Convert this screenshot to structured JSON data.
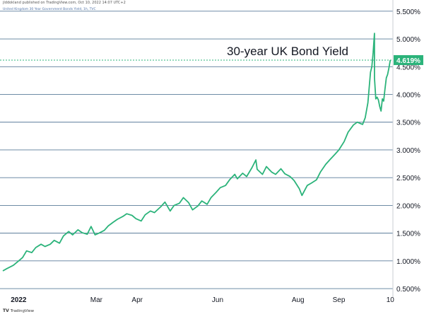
{
  "header": {
    "published": "jlddokland published on TradingView.com, Oct 10, 2022 14:07 UTC+2",
    "symbol": "United Kingdom 30 Year Government Bonds Yield, 1h, TVC"
  },
  "footer": {
    "logo_mark": "TV",
    "logo_text": "TradingView"
  },
  "colors": {
    "line": "#2bb37a",
    "grid": "#5a7c9a",
    "last_value_bg": "#2bb37a",
    "dotted_line": "#2bb37a",
    "axis_text": "#131722"
  },
  "chart_data": {
    "type": "line",
    "title": "30-year UK Bond Yield",
    "xlabel": "",
    "ylabel": "",
    "ylim": [
      0.45,
      5.6
    ],
    "grid": true,
    "last_value_label": "4.619%",
    "last_value": 4.619,
    "y_ticks": [
      {
        "value": 0.5,
        "label": "0.500%"
      },
      {
        "value": 1.0,
        "label": "1.000%"
      },
      {
        "value": 1.5,
        "label": "1.500%"
      },
      {
        "value": 2.0,
        "label": "2.000%"
      },
      {
        "value": 2.5,
        "label": "2.500%"
      },
      {
        "value": 3.0,
        "label": "3.000%"
      },
      {
        "value": 3.5,
        "label": "3.500%"
      },
      {
        "value": 4.0,
        "label": "4.000%"
      },
      {
        "value": 4.5,
        "label": "4.500%"
      },
      {
        "value": 5.0,
        "label": "5.000%"
      },
      {
        "value": 5.5,
        "label": "5.500%"
      }
    ],
    "x_ticks": [
      {
        "date": "2022-01-01",
        "label": "2022"
      },
      {
        "date": "2022-03-01",
        "label": "Mar"
      },
      {
        "date": "2022-04-01",
        "label": "Apr"
      },
      {
        "date": "2022-06-01",
        "label": "Jun"
      },
      {
        "date": "2022-08-01",
        "label": "Aug"
      },
      {
        "date": "2022-09-01",
        "label": "Sep"
      },
      {
        "date": "2022-10-10",
        "label": "10"
      }
    ],
    "x_range": [
      "2021-12-20",
      "2022-10-12"
    ],
    "series": [
      {
        "points": [
          [
            "2021-12-20",
            0.82
          ],
          [
            "2021-12-23",
            0.86
          ],
          [
            "2021-12-28",
            0.92
          ],
          [
            "2021-12-31",
            0.98
          ],
          [
            "2022-01-04",
            1.06
          ],
          [
            "2022-01-07",
            1.18
          ],
          [
            "2022-01-11",
            1.15
          ],
          [
            "2022-01-14",
            1.24
          ],
          [
            "2022-01-18",
            1.3
          ],
          [
            "2022-01-21",
            1.26
          ],
          [
            "2022-01-25",
            1.3
          ],
          [
            "2022-01-28",
            1.37
          ],
          [
            "2022-02-01",
            1.32
          ],
          [
            "2022-02-04",
            1.45
          ],
          [
            "2022-02-08",
            1.53
          ],
          [
            "2022-02-11",
            1.47
          ],
          [
            "2022-02-15",
            1.56
          ],
          [
            "2022-02-18",
            1.51
          ],
          [
            "2022-02-22",
            1.48
          ],
          [
            "2022-02-25",
            1.62
          ],
          [
            "2022-02-28",
            1.47
          ],
          [
            "2022-03-03",
            1.5
          ],
          [
            "2022-03-07",
            1.55
          ],
          [
            "2022-03-10",
            1.63
          ],
          [
            "2022-03-14",
            1.7
          ],
          [
            "2022-03-17",
            1.75
          ],
          [
            "2022-03-21",
            1.8
          ],
          [
            "2022-03-24",
            1.85
          ],
          [
            "2022-03-28",
            1.82
          ],
          [
            "2022-03-31",
            1.76
          ],
          [
            "2022-04-04",
            1.72
          ],
          [
            "2022-04-07",
            1.83
          ],
          [
            "2022-04-11",
            1.9
          ],
          [
            "2022-04-14",
            1.87
          ],
          [
            "2022-04-19",
            1.98
          ],
          [
            "2022-04-22",
            2.06
          ],
          [
            "2022-04-26",
            1.9
          ],
          [
            "2022-04-29",
            2.0
          ],
          [
            "2022-05-03",
            2.04
          ],
          [
            "2022-05-06",
            2.14
          ],
          [
            "2022-05-10",
            2.05
          ],
          [
            "2022-05-13",
            1.92
          ],
          [
            "2022-05-17",
            1.99
          ],
          [
            "2022-05-20",
            2.08
          ],
          [
            "2022-05-24",
            2.02
          ],
          [
            "2022-05-27",
            2.14
          ],
          [
            "2022-05-31",
            2.24
          ],
          [
            "2022-06-03",
            2.32
          ],
          [
            "2022-06-07",
            2.36
          ],
          [
            "2022-06-10",
            2.46
          ],
          [
            "2022-06-14",
            2.56
          ],
          [
            "2022-06-16",
            2.48
          ],
          [
            "2022-06-20",
            2.58
          ],
          [
            "2022-06-23",
            2.52
          ],
          [
            "2022-06-27",
            2.68
          ],
          [
            "2022-06-30",
            2.82
          ],
          [
            "2022-07-01",
            2.65
          ],
          [
            "2022-07-05",
            2.56
          ],
          [
            "2022-07-08",
            2.7
          ],
          [
            "2022-07-12",
            2.6
          ],
          [
            "2022-07-15",
            2.56
          ],
          [
            "2022-07-19",
            2.66
          ],
          [
            "2022-07-22",
            2.57
          ],
          [
            "2022-07-26",
            2.52
          ],
          [
            "2022-07-29",
            2.45
          ],
          [
            "2022-08-02",
            2.3
          ],
          [
            "2022-08-04",
            2.18
          ],
          [
            "2022-08-08",
            2.36
          ],
          [
            "2022-08-11",
            2.4
          ],
          [
            "2022-08-15",
            2.46
          ],
          [
            "2022-08-18",
            2.6
          ],
          [
            "2022-08-22",
            2.74
          ],
          [
            "2022-08-25",
            2.82
          ],
          [
            "2022-08-29",
            2.92
          ],
          [
            "2022-09-01",
            3.0
          ],
          [
            "2022-09-05",
            3.15
          ],
          [
            "2022-09-08",
            3.32
          ],
          [
            "2022-09-12",
            3.45
          ],
          [
            "2022-09-15",
            3.5
          ],
          [
            "2022-09-19",
            3.46
          ],
          [
            "2022-09-21",
            3.58
          ],
          [
            "2022-09-23",
            3.85
          ],
          [
            "2022-09-25",
            4.4
          ],
          [
            "2022-09-26",
            4.5
          ],
          [
            "2022-09-27",
            4.75
          ],
          [
            "2022-09-28",
            5.1
          ],
          [
            "2022-09-28",
            4.3
          ],
          [
            "2022-09-29",
            3.92
          ],
          [
            "2022-09-30",
            3.95
          ],
          [
            "2022-10-01",
            3.9
          ],
          [
            "2022-10-02",
            3.78
          ],
          [
            "2022-10-03",
            3.7
          ],
          [
            "2022-10-04",
            3.92
          ],
          [
            "2022-10-05",
            3.88
          ],
          [
            "2022-10-06",
            4.1
          ],
          [
            "2022-10-07",
            4.3
          ],
          [
            "2022-10-08",
            4.36
          ],
          [
            "2022-10-09",
            4.48
          ],
          [
            "2022-10-10",
            4.619
          ]
        ]
      }
    ]
  }
}
